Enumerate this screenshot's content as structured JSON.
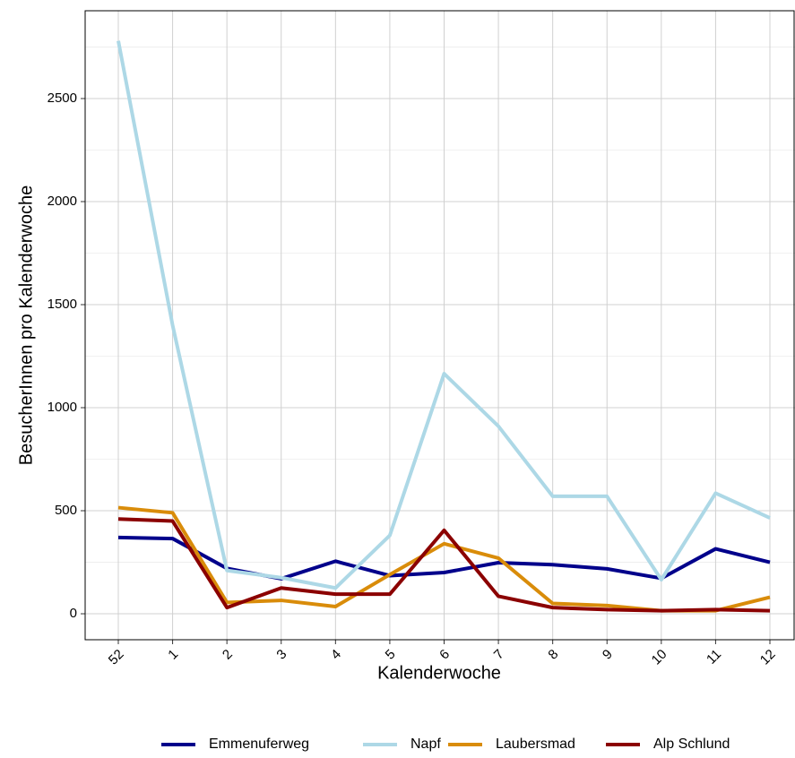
{
  "chart_data": {
    "type": "line",
    "x_label": "Kalenderwoche",
    "y_label": "BesucherInnen pro Kalenderwoche",
    "categories": [
      "52",
      "1",
      "2",
      "3",
      "4",
      "5",
      "6",
      "7",
      "8",
      "9",
      "10",
      "11",
      "12"
    ],
    "series": [
      {
        "name": "Emmenuferweg",
        "color": "#00008b",
        "values": [
          370,
          365,
          220,
          170,
          255,
          185,
          200,
          248,
          238,
          218,
          172,
          315,
          250
        ]
      },
      {
        "name": "Napf",
        "color": "#add8e6",
        "values": [
          2780,
          1400,
          210,
          175,
          125,
          380,
          1165,
          910,
          570,
          570,
          165,
          585,
          465
        ]
      },
      {
        "name": "Laubersmad",
        "color": "#d98c0a",
        "values": [
          515,
          490,
          55,
          65,
          35,
          190,
          340,
          270,
          50,
          40,
          15,
          15,
          80
        ]
      },
      {
        "name": "Alp Schlund",
        "color": "#8b0000",
        "values": [
          460,
          450,
          30,
          125,
          95,
          95,
          405,
          85,
          30,
          20,
          15,
          20,
          15
        ]
      }
    ],
    "ylim": [
      -126,
      2926
    ],
    "yticks": [
      0,
      500,
      1000,
      1500,
      2000,
      2500
    ],
    "grid": true,
    "legend": "bottom"
  }
}
